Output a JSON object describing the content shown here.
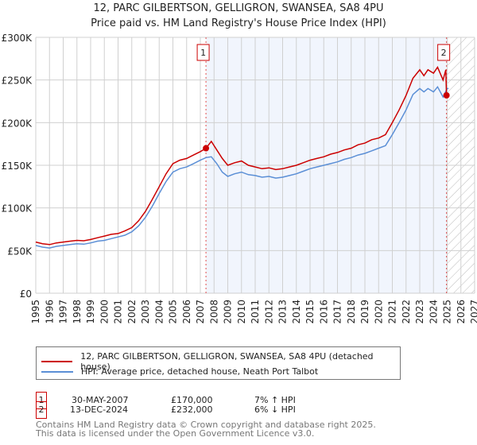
{
  "chart_data": {
    "type": "line",
    "title": "12, PARC GILBERTSON, GELLIGRON, SWANSEA, SA8 4PU",
    "subtitle": "Price paid vs. HM Land Registry's House Price Index (HPI)",
    "xlim": [
      1995,
      2027
    ],
    "ylim": [
      0,
      300000
    ],
    "y_ticks": [
      0,
      50000,
      100000,
      150000,
      200000,
      250000,
      300000
    ],
    "y_tick_labels": [
      "£0",
      "£50K",
      "£100K",
      "£150K",
      "£200K",
      "£250K",
      "£300K"
    ],
    "x_ticks": [
      "1995",
      "1996",
      "1997",
      "1998",
      "1999",
      "2000",
      "2001",
      "2002",
      "2003",
      "2004",
      "2005",
      "2006",
      "2007",
      "2008",
      "2009",
      "2010",
      "2011",
      "2012",
      "2013",
      "2014",
      "2015",
      "2016",
      "2017",
      "2018",
      "2019",
      "2020",
      "2021",
      "2022",
      "2023",
      "2024",
      "2025",
      "2026",
      "2027"
    ],
    "grid": true,
    "shaded_period": [
      2007.41,
      2024.95
    ],
    "hatched_period": [
      2025,
      2027
    ],
    "series": [
      {
        "name": "12, PARC GILBERTSON, GELLIGRON, SWANSEA, SA8 4PU (detached house)",
        "color": "#cc0000",
        "x": [
          1995,
          1995.5,
          1996,
          1996.5,
          1997,
          1997.5,
          1998,
          1998.5,
          1999,
          1999.5,
          2000,
          2000.5,
          2001,
          2001.5,
          2002,
          2002.5,
          2003,
          2003.5,
          2004,
          2004.5,
          2005,
          2005.5,
          2006,
          2006.5,
          2007,
          2007.41,
          2007.8,
          2008.2,
          2008.6,
          2009,
          2009.5,
          2010,
          2010.5,
          2011,
          2011.5,
          2012,
          2012.5,
          2013,
          2013.5,
          2014,
          2014.5,
          2015,
          2015.5,
          2016,
          2016.5,
          2017,
          2017.5,
          2018,
          2018.5,
          2019,
          2019.5,
          2020,
          2020.5,
          2021,
          2021.5,
          2022,
          2022.5,
          2023,
          2023.3,
          2023.6,
          2024,
          2024.3,
          2024.7,
          2024.9,
          2024.95
        ],
        "y": [
          60000,
          58000,
          57000,
          59000,
          60000,
          61000,
          62000,
          61500,
          63000,
          65000,
          67000,
          69000,
          70000,
          73000,
          77000,
          85000,
          96000,
          110000,
          125000,
          140000,
          152000,
          156000,
          158000,
          162000,
          166000,
          170000,
          178000,
          168000,
          158000,
          150000,
          153000,
          155000,
          150000,
          148000,
          146000,
          147000,
          145000,
          146000,
          148000,
          150000,
          153000,
          156000,
          158000,
          160000,
          163000,
          165000,
          168000,
          170000,
          174000,
          176000,
          180000,
          182000,
          186000,
          200000,
          215000,
          232000,
          252000,
          262000,
          255000,
          262000,
          258000,
          265000,
          250000,
          262000,
          232000
        ]
      },
      {
        "name": "HPI: Average price, detached house, Neath Port Talbot",
        "color": "#5b8fd6",
        "x": [
          1995,
          1995.5,
          1996,
          1996.5,
          1997,
          1997.5,
          1998,
          1998.5,
          1999,
          1999.5,
          2000,
          2000.5,
          2001,
          2001.5,
          2002,
          2002.5,
          2003,
          2003.5,
          2004,
          2004.5,
          2005,
          2005.5,
          2006,
          2006.5,
          2007,
          2007.41,
          2007.8,
          2008.2,
          2008.6,
          2009,
          2009.5,
          2010,
          2010.5,
          2011,
          2011.5,
          2012,
          2012.5,
          2013,
          2013.5,
          2014,
          2014.5,
          2015,
          2015.5,
          2016,
          2016.5,
          2017,
          2017.5,
          2018,
          2018.5,
          2019,
          2019.5,
          2020,
          2020.5,
          2021,
          2021.5,
          2022,
          2022.5,
          2023,
          2023.3,
          2023.6,
          2024,
          2024.3,
          2024.7,
          2025,
          2025.1
        ],
        "y": [
          56000,
          54000,
          53000,
          55000,
          56000,
          57000,
          58000,
          57500,
          59000,
          61000,
          62000,
          64000,
          66000,
          68000,
          72000,
          79000,
          89000,
          102000,
          117000,
          131000,
          142000,
          146000,
          148000,
          152000,
          156000,
          159000,
          160000,
          152000,
          142000,
          137000,
          140000,
          142000,
          139000,
          138000,
          136000,
          137000,
          135000,
          136000,
          138000,
          140000,
          143000,
          146000,
          148000,
          150000,
          152000,
          154000,
          157000,
          159000,
          162000,
          164000,
          167000,
          170000,
          173000,
          186000,
          200000,
          215000,
          233000,
          240000,
          236000,
          240000,
          236000,
          242000,
          230000,
          240000,
          240000
        ]
      }
    ],
    "sales": [
      {
        "label": "1",
        "x": 2007.41,
        "y": 170000
      },
      {
        "label": "2",
        "x": 2024.95,
        "y": 232000
      }
    ]
  },
  "legend": {
    "property": "12, PARC GILBERTSON, GELLIGRON, SWANSEA, SA8 4PU (detached house)",
    "hpi": "HPI: Average price, detached house, Neath Port Talbot"
  },
  "transactions": [
    {
      "num": "1",
      "date": "30-MAY-2007",
      "price": "£170,000",
      "hpi": "7% ↑ HPI"
    },
    {
      "num": "2",
      "date": "13-DEC-2024",
      "price": "£232,000",
      "hpi": "6% ↓ HPI"
    }
  ],
  "footer": {
    "line1": "Contains HM Land Registry data © Crown copyright and database right 2025.",
    "line2": "This data is licensed under the Open Government Licence v3.0."
  }
}
